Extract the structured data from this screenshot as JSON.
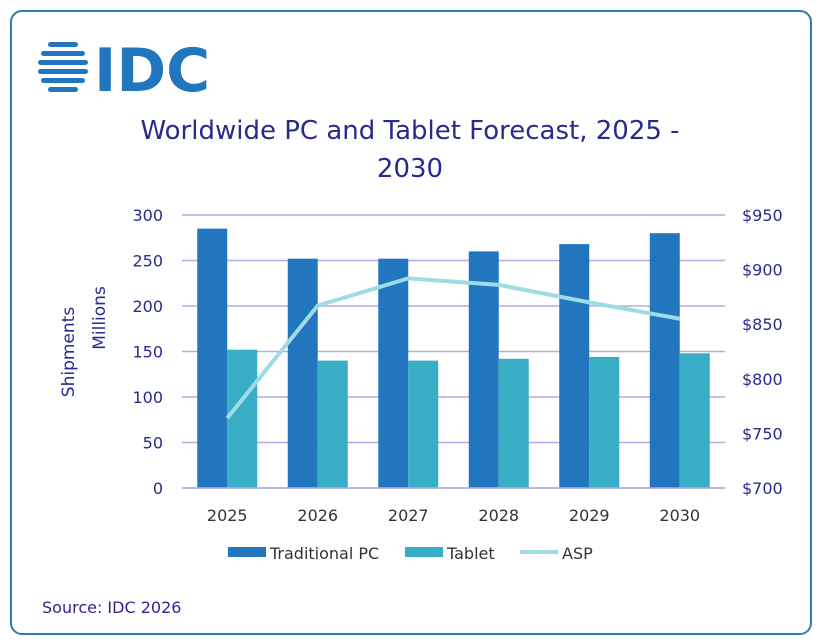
{
  "logo_text": "IDC",
  "source": "Source: IDC 2026",
  "colors": {
    "pc": "#2176bd",
    "tablet": "#37adc6",
    "asp": "#9fdbe5",
    "text": "#2a2a8c",
    "grid": "#b3addf"
  },
  "chart_data": {
    "type": "bar",
    "title": "Worldwide PC and Tablet Forecast, 2025 - 2030",
    "categories": [
      "2025",
      "2026",
      "2027",
      "2028",
      "2029",
      "2030"
    ],
    "series": [
      {
        "name": "Traditional PC",
        "type": "bar",
        "axis": "left",
        "values": [
          285,
          252,
          252,
          260,
          268,
          280
        ]
      },
      {
        "name": "Tablet",
        "type": "bar",
        "axis": "left",
        "values": [
          152,
          140,
          140,
          142,
          144,
          148
        ]
      },
      {
        "name": "ASP",
        "type": "line",
        "axis": "right",
        "values": [
          764,
          867,
          892,
          886,
          870,
          855
        ]
      }
    ],
    "ylabel": "Shipments\nMillions",
    "ylim": [
      0,
      300
    ],
    "yticks": [
      "0",
      "50",
      "100",
      "150",
      "200",
      "250",
      "300"
    ],
    "y2lim": [
      700,
      950
    ],
    "y2ticks": [
      "$700",
      "$750",
      "$800",
      "$850",
      "$900",
      "$950"
    ],
    "grid": true,
    "legend": "bottom"
  }
}
